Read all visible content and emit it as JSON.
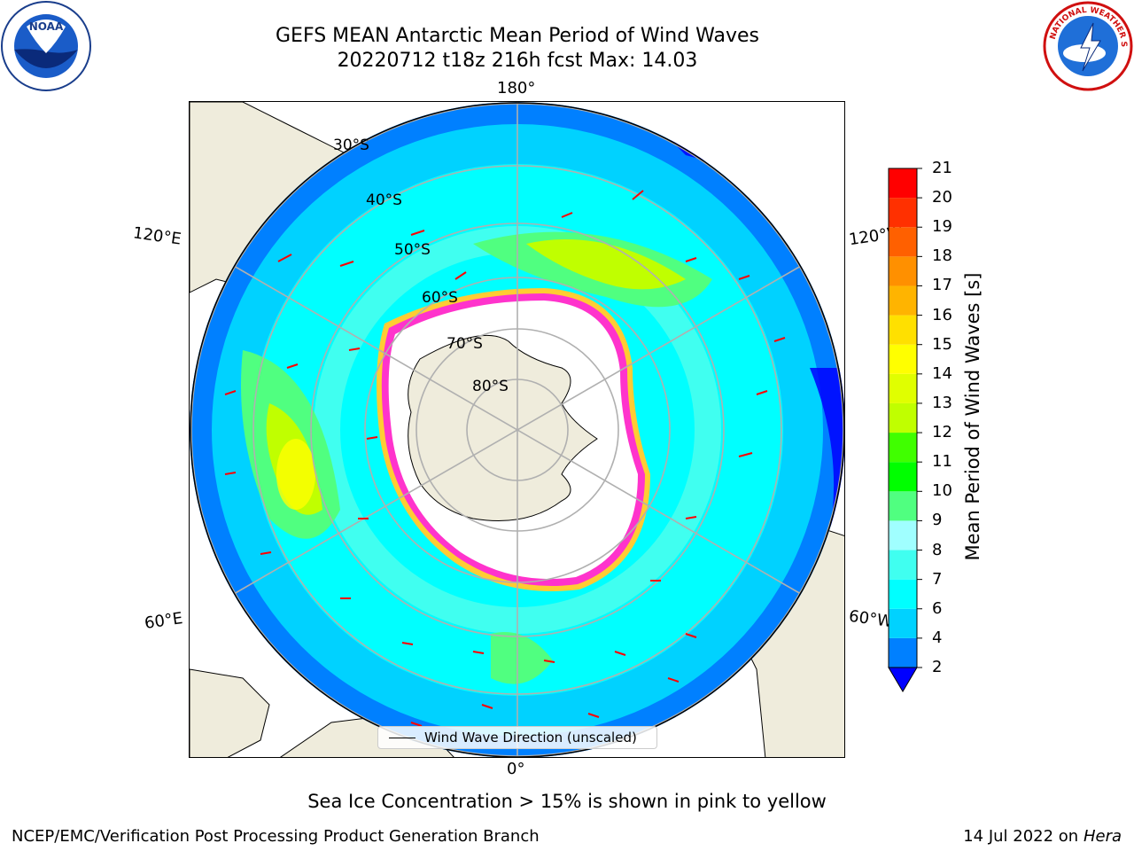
{
  "header": {
    "title_line1": "GEFS MEAN Antarctic Mean Period of Wind Waves",
    "title_line2": "20220712 t18z 216h fcst   Max: 14.03"
  },
  "logos": {
    "left": "NOAA",
    "right": "NATIONAL WEATHER SERVICE"
  },
  "map": {
    "projection": "south polar stereographic",
    "longitude_labels": {
      "top": "180°",
      "bottom": "0°",
      "upper_left": "120°E",
      "upper_right": "120°W",
      "lower_left": "60°E",
      "lower_right": "60°W"
    },
    "latitude_labels": [
      "30°S",
      "40°S",
      "50°S",
      "60°S",
      "70°S",
      "80°S"
    ],
    "legend": "Wind Wave Direction (unscaled)",
    "colors": {
      "land": "#efecdc",
      "ocean_low": "#00ffff",
      "ice_edge": "#ff33cc",
      "ice_inner": "#ffcc33",
      "arrow": "#ff0000"
    }
  },
  "colorbar": {
    "label": "Mean Period of Wind Waves [s]",
    "ticks": [
      "2",
      "4",
      "6",
      "7",
      "8",
      "9",
      "10",
      "11",
      "12",
      "13",
      "14",
      "15",
      "16",
      "17",
      "18",
      "19",
      "20",
      "21"
    ],
    "levels": [
      {
        "from": 2,
        "to": 4,
        "color": "#0080ff"
      },
      {
        "from": 4,
        "to": 6,
        "color": "#00d2ff"
      },
      {
        "from": 6,
        "to": 7,
        "color": "#00ffff"
      },
      {
        "from": 7,
        "to": 8,
        "color": "#40fff0"
      },
      {
        "from": 8,
        "to": 9,
        "color": "#a0ffff"
      },
      {
        "from": 9,
        "to": 10,
        "color": "#50ff80"
      },
      {
        "from": 10,
        "to": 11,
        "color": "#00ff00"
      },
      {
        "from": 11,
        "to": 12,
        "color": "#40ff00"
      },
      {
        "from": 12,
        "to": 13,
        "color": "#c0ff00"
      },
      {
        "from": 13,
        "to": 14,
        "color": "#e0ff00"
      },
      {
        "from": 14,
        "to": 15,
        "color": "#ffff00"
      },
      {
        "from": 15,
        "to": 16,
        "color": "#ffe000"
      },
      {
        "from": 16,
        "to": 17,
        "color": "#ffb400"
      },
      {
        "from": 17,
        "to": 18,
        "color": "#ff9000"
      },
      {
        "from": 18,
        "to": 19,
        "color": "#ff6000"
      },
      {
        "from": 19,
        "to": 20,
        "color": "#ff3000"
      },
      {
        "from": 20,
        "to": 21,
        "color": "#ff0000"
      }
    ],
    "under_color": "#0000ff"
  },
  "footer": {
    "note": "Sea Ice Concentration > 15% is shown in pink to yellow",
    "branch": "NCEP/EMC/Verification Post Processing Product Generation Branch",
    "date_prefix": "14 Jul 2022 on ",
    "machine": "Hera"
  }
}
